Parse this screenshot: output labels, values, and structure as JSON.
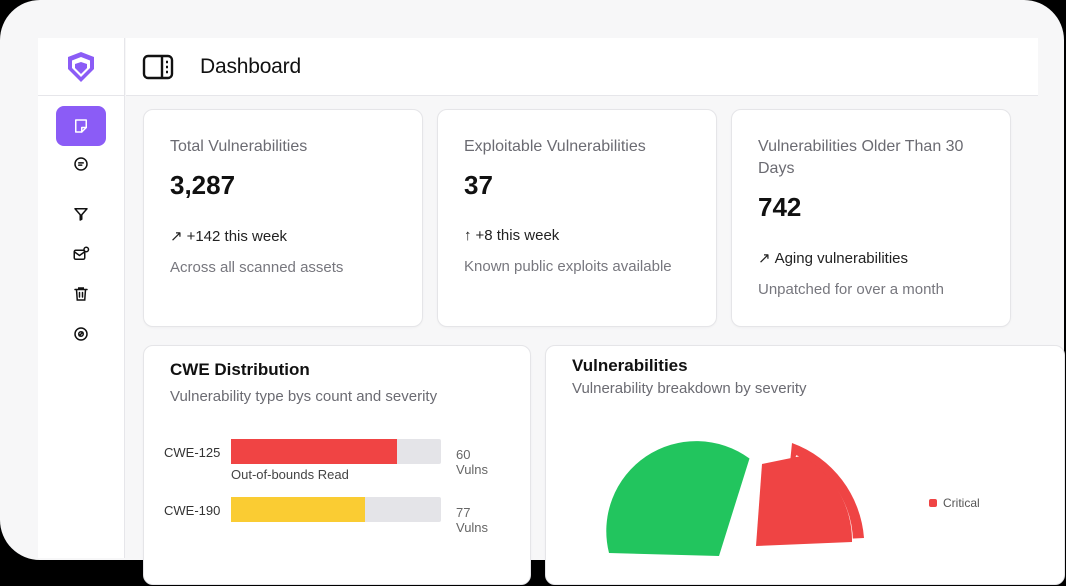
{
  "header": {
    "title": "Dashboard"
  },
  "sidebar": {
    "items": [
      {
        "icon": "note-icon",
        "active": true
      },
      {
        "icon": "chat-icon",
        "active": false
      },
      {
        "icon": "filter-icon",
        "active": false
      },
      {
        "icon": "mail-settings-icon",
        "active": false
      },
      {
        "icon": "trash-icon",
        "active": false
      },
      {
        "icon": "target-icon",
        "active": false
      }
    ]
  },
  "stats": [
    {
      "label": "Total Vulnerabilities",
      "value": "3,287",
      "trend_icon": "↗",
      "trend": "+142 this week",
      "sub": "Across all scanned assets"
    },
    {
      "label": "Exploitable Vulnerabilities",
      "value": "37",
      "trend_icon": "↑",
      "trend": "+8 this week",
      "sub": "Known public exploits available"
    },
    {
      "label": "Vulnerabilities Older Than 30 Days",
      "value": "742",
      "trend_icon": "↗",
      "trend": "Aging vulnerabilities",
      "sub": "Unpatched for over a month"
    }
  ],
  "cwe": {
    "title": "CWE Distribution",
    "subtitle": "Vulnerability type bys count and severity",
    "rows": [
      {
        "id": "CWE-125",
        "name": "Out-of-bounds Read",
        "count": "60 Vulns",
        "fraction": 0.79,
        "color": "#f04444"
      },
      {
        "id": "CWE-190",
        "name": "",
        "count": "77 Vulns",
        "fraction": 0.64,
        "color": "#facc33"
      }
    ]
  },
  "vulnerabilities": {
    "title": "Vulnerabilities",
    "subtitle": "Vulnerability breakdown by severity",
    "legend": [
      {
        "label": "Critical",
        "color": "#ef4444"
      }
    ],
    "colors": {
      "critical": "#ef4444",
      "other": "#22c55e"
    }
  }
}
